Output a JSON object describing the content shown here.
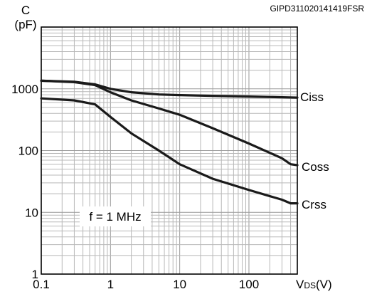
{
  "chart_data": {
    "type": "line",
    "title": "",
    "code": "GIPD311020141419FSR",
    "ylabel": "C",
    "yunit": "(pF)",
    "xlabel": "V",
    "xlabel_sub": "DS",
    "xlabel_unit": "(V)",
    "xscale": "log",
    "yscale": "log",
    "xlim": [
      0.1,
      500
    ],
    "ylim": [
      1,
      10000
    ],
    "grid": true,
    "x_ticks": [
      {
        "value": 0.1,
        "label": "0.1"
      },
      {
        "value": 1,
        "label": "1"
      },
      {
        "value": 10,
        "label": "10"
      },
      {
        "value": 100,
        "label": "100"
      }
    ],
    "y_ticks": [
      {
        "value": 1,
        "label": "1"
      },
      {
        "value": 10,
        "label": "10"
      },
      {
        "value": 100,
        "label": "100"
      },
      {
        "value": 1000,
        "label": "1000"
      }
    ],
    "annotation": "f = 1 MHz",
    "series": [
      {
        "name": "Ciss",
        "x": [
          0.1,
          0.3,
          0.6,
          1,
          2,
          5,
          10,
          30,
          100,
          300,
          500
        ],
        "y": [
          1350,
          1300,
          1180,
          1000,
          880,
          810,
          790,
          770,
          750,
          730,
          720
        ]
      },
      {
        "name": "Coss",
        "x": [
          0.1,
          0.3,
          0.6,
          1,
          2,
          5,
          10,
          30,
          100,
          300,
          400,
          500
        ],
        "y": [
          1350,
          1280,
          1150,
          880,
          650,
          480,
          380,
          230,
          130,
          75,
          60,
          58
        ]
      },
      {
        "name": "Crss",
        "x": [
          0.1,
          0.3,
          0.6,
          1,
          2,
          5,
          10,
          30,
          100,
          300,
          400,
          500
        ],
        "y": [
          700,
          650,
          560,
          350,
          190,
          100,
          60,
          35,
          23,
          16,
          14,
          14
        ]
      }
    ]
  }
}
